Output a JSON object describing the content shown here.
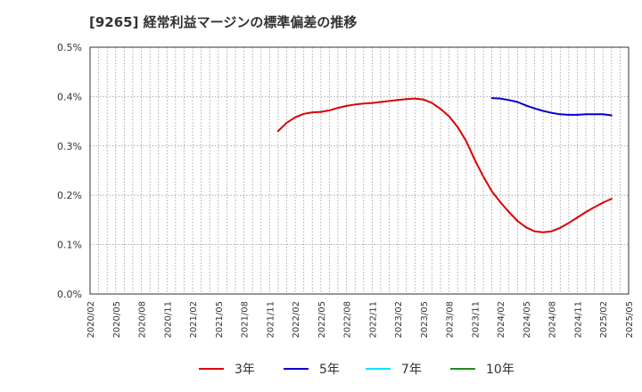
{
  "chart_data": {
    "type": "line",
    "title": "[9265]  経常利益マージンの標準偏差の推移",
    "xlabel": "",
    "ylabel": "",
    "ylim": [
      0,
      0.5
    ],
    "y_ticks": [
      "0.0%",
      "0.1%",
      "0.2%",
      "0.3%",
      "0.4%",
      "0.5%"
    ],
    "x_ticks": [
      "2020/02",
      "2020/05",
      "2020/08",
      "2020/11",
      "2021/02",
      "2021/05",
      "2021/08",
      "2021/11",
      "2022/02",
      "2022/05",
      "2022/08",
      "2022/11",
      "2023/02",
      "2023/05",
      "2023/08",
      "2023/11",
      "2024/02",
      "2024/05",
      "2024/08",
      "2024/11",
      "2025/02",
      "2025/05"
    ],
    "grid": true,
    "legend_position": "bottom",
    "series": [
      {
        "name": "3年",
        "color": "#dd0000",
        "points": [
          [
            "2021/12",
            0.33
          ],
          [
            "2022/01",
            0.347
          ],
          [
            "2022/02",
            0.358
          ],
          [
            "2022/03",
            0.365
          ],
          [
            "2022/04",
            0.368
          ],
          [
            "2022/05",
            0.369
          ],
          [
            "2022/06",
            0.372
          ],
          [
            "2022/07",
            0.377
          ],
          [
            "2022/08",
            0.381
          ],
          [
            "2022/09",
            0.384
          ],
          [
            "2022/10",
            0.386
          ],
          [
            "2022/11",
            0.387
          ],
          [
            "2022/12",
            0.389
          ],
          [
            "2023/01",
            0.391
          ],
          [
            "2023/02",
            0.393
          ],
          [
            "2023/03",
            0.395
          ],
          [
            "2023/04",
            0.396
          ],
          [
            "2023/05",
            0.394
          ],
          [
            "2023/06",
            0.387
          ],
          [
            "2023/07",
            0.375
          ],
          [
            "2023/08",
            0.36
          ],
          [
            "2023/09",
            0.338
          ],
          [
            "2023/10",
            0.31
          ],
          [
            "2023/11",
            0.272
          ],
          [
            "2023/12",
            0.238
          ],
          [
            "2024/01",
            0.208
          ],
          [
            "2024/02",
            0.186
          ],
          [
            "2024/03",
            0.166
          ],
          [
            "2024/04",
            0.148
          ],
          [
            "2024/05",
            0.135
          ],
          [
            "2024/06",
            0.127
          ],
          [
            "2024/07",
            0.125
          ],
          [
            "2024/08",
            0.127
          ],
          [
            "2024/09",
            0.134
          ],
          [
            "2024/10",
            0.144
          ],
          [
            "2024/11",
            0.155
          ],
          [
            "2024/12",
            0.166
          ],
          [
            "2025/01",
            0.176
          ],
          [
            "2025/02",
            0.185
          ],
          [
            "2025/03",
            0.193
          ]
        ]
      },
      {
        "name": "5年",
        "color": "#0000cc",
        "points": [
          [
            "2024/01",
            0.397
          ],
          [
            "2024/02",
            0.396
          ],
          [
            "2024/03",
            0.393
          ],
          [
            "2024/04",
            0.389
          ],
          [
            "2024/05",
            0.382
          ],
          [
            "2024/06",
            0.376
          ],
          [
            "2024/07",
            0.371
          ],
          [
            "2024/08",
            0.367
          ],
          [
            "2024/09",
            0.364
          ],
          [
            "2024/10",
            0.363
          ],
          [
            "2024/11",
            0.363
          ],
          [
            "2024/12",
            0.364
          ],
          [
            "2025/01",
            0.364
          ],
          [
            "2025/02",
            0.364
          ],
          [
            "2025/03",
            0.362
          ]
        ]
      },
      {
        "name": "7年",
        "color": "#00e5ff",
        "points": []
      },
      {
        "name": "10年",
        "color": "#228b22",
        "points": []
      }
    ]
  }
}
